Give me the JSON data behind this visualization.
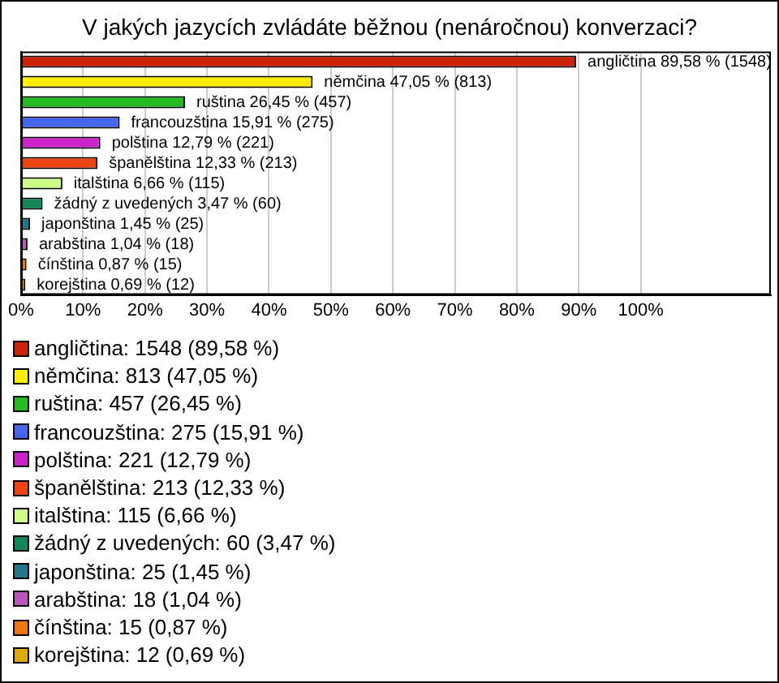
{
  "chart_data": {
    "type": "bar",
    "orientation": "horizontal",
    "title": "V jakých jazycích zvládáte běžnou (nenáročnou) konverzaci?",
    "categories": [
      "angličtina",
      "němčina",
      "ruština",
      "francouzština",
      "polština",
      "španělština",
      "italština",
      "žádný z uvedených",
      "japonština",
      "arabština",
      "čínština",
      "korejština"
    ],
    "values": [
      89.58,
      47.05,
      26.45,
      15.91,
      12.79,
      12.33,
      6.66,
      3.47,
      1.45,
      1.04,
      0.87,
      0.69
    ],
    "value_labels": [
      "89,58 % (1548)",
      "47,05 % (813)",
      "26,45 % (457)",
      "15,91 % (275)",
      "12,79 % (221)",
      "12,33 % (213)",
      "6,66 % (115)",
      "3,47 % (60)",
      "1,45 % (25)",
      "1,04 % (18)",
      "0,87 % (15)",
      "0,69 % (12)"
    ],
    "colors": [
      "#cc2200",
      "#ffee00",
      "#22bb22",
      "#4466ee",
      "#cc22cc",
      "#ee4411",
      "#ccff88",
      "#118855",
      "#227788",
      "#bb55bb",
      "#ee7711",
      "#ddaa00"
    ],
    "xlim": [
      0,
      121
    ],
    "xticks": [
      {
        "value": 0,
        "label": "0%"
      },
      {
        "value": 10,
        "label": "10%"
      },
      {
        "value": 20,
        "label": "20%"
      },
      {
        "value": 30,
        "label": "30%"
      },
      {
        "value": 40,
        "label": "40%"
      },
      {
        "value": 50,
        "label": "50%"
      },
      {
        "value": 60,
        "label": "60%"
      },
      {
        "value": 70,
        "label": "70%"
      },
      {
        "value": 80,
        "label": "80%"
      },
      {
        "value": 90,
        "label": "90%"
      },
      {
        "value": 100,
        "label": "100%"
      }
    ],
    "grid": "x",
    "tick_labels": "x",
    "annotations": [
      "angličtina: 1548 (89,58 %)",
      "němčina: 813 (47,05 %)",
      "ruština: 457 (26,45 %)",
      "francouzština: 275 (15,91 %)",
      "polština: 221 (12,79 %)",
      "španělština: 213 (12,33 %)",
      "italština: 115 (6,66 %)",
      "žádný z uvedených: 60 (3,47 %)",
      "japonština: 25 (1,45 %)",
      "arabština: 18 (1,04 %)",
      "čínština: 15 (0,87 %)",
      "korejština: 12 (0,69 %)"
    ]
  }
}
